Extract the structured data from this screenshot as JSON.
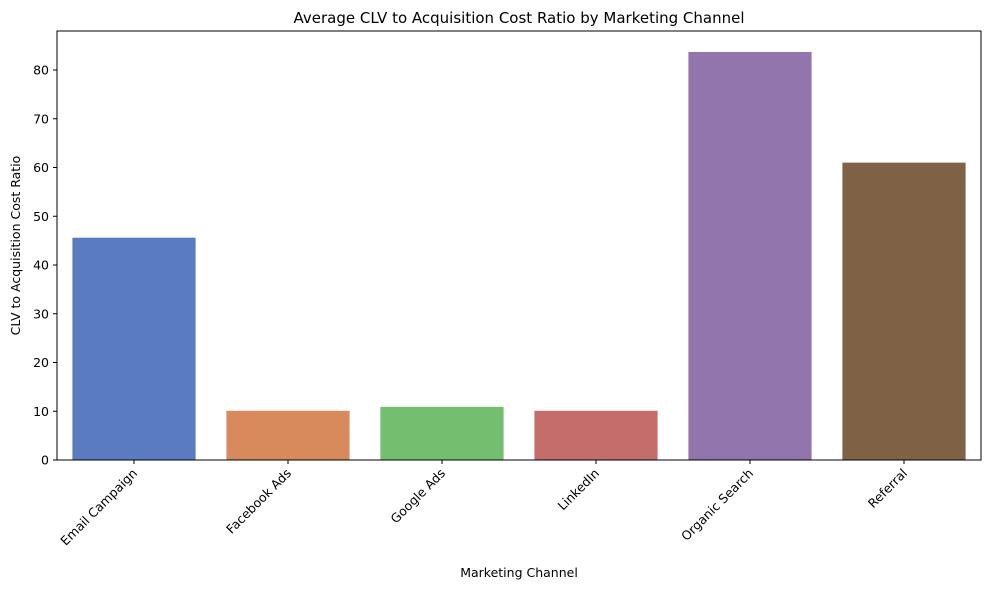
{
  "chart_data": {
    "type": "bar",
    "title": "Average CLV to Acquisition Cost Ratio by Marketing Channel",
    "xlabel": "Marketing Channel",
    "ylabel": "CLV to Acquisition Cost Ratio",
    "categories": [
      "Email Campaign",
      "Facebook Ads",
      "Google Ads",
      "LinkedIn",
      "Organic Search",
      "Referral"
    ],
    "values": [
      45.6,
      10.1,
      10.9,
      10.1,
      83.7,
      61.0
    ],
    "colors": [
      "#5a7bbf",
      "#d98a5d",
      "#74bf6f",
      "#c56d6b",
      "#9275ac",
      "#7f6145"
    ],
    "ylim": [
      0,
      88
    ],
    "yticks": [
      0,
      10,
      20,
      30,
      40,
      50,
      60,
      70,
      80
    ],
    "grid": false,
    "legend": "none"
  }
}
